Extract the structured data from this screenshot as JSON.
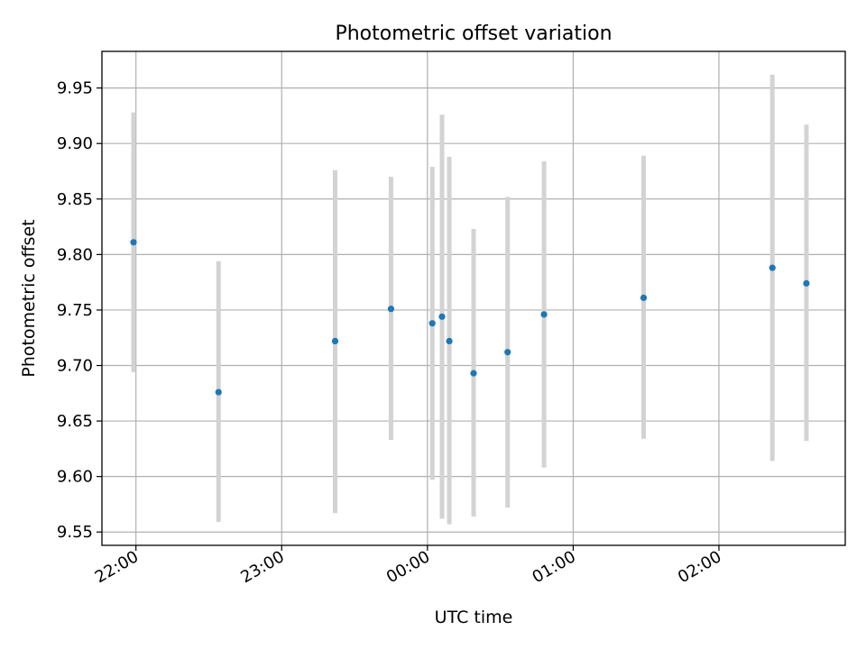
{
  "chart_data": {
    "type": "scatter",
    "title": "Photometric offset variation",
    "xlabel": "UTC time",
    "ylabel": "Photometric offset",
    "x_axis": {
      "kind": "time",
      "range": [
        "21:46",
        "02:52"
      ],
      "ticks": [
        "22:00",
        "23:00",
        "00:00",
        "01:00",
        "02:00"
      ],
      "tick_rotation_deg": 30
    },
    "ylim": [
      9.538,
      9.983
    ],
    "yticks": [
      "9.55",
      "9.60",
      "9.65",
      "9.70",
      "9.75",
      "9.80",
      "9.85",
      "9.90",
      "9.95"
    ],
    "grid": true,
    "colors": {
      "marker": "#1f77b4",
      "errorbar": "#d3d3d3",
      "grid": "#b0b0b0"
    },
    "series": [
      {
        "points": [
          {
            "x": "21:59",
            "y": 9.811,
            "err_low": 9.694,
            "err_high": 9.928
          },
          {
            "x": "22:34",
            "y": 9.676,
            "err_low": 9.559,
            "err_high": 9.794
          },
          {
            "x": "23:22",
            "y": 9.722,
            "err_low": 9.567,
            "err_high": 9.876
          },
          {
            "x": "23:45",
            "y": 9.751,
            "err_low": 9.633,
            "err_high": 9.87
          },
          {
            "x": "00:02",
            "y": 9.738,
            "err_low": 9.597,
            "err_high": 9.879
          },
          {
            "x": "00:06",
            "y": 9.744,
            "err_low": 9.562,
            "err_high": 9.926
          },
          {
            "x": "00:09",
            "y": 9.722,
            "err_low": 9.557,
            "err_high": 9.888
          },
          {
            "x": "00:19",
            "y": 9.693,
            "err_low": 9.564,
            "err_high": 9.823
          },
          {
            "x": "00:33",
            "y": 9.712,
            "err_low": 9.572,
            "err_high": 9.852
          },
          {
            "x": "00:48",
            "y": 9.746,
            "err_low": 9.608,
            "err_high": 9.884
          },
          {
            "x": "01:29",
            "y": 9.761,
            "err_low": 9.634,
            "err_high": 9.889
          },
          {
            "x": "02:22",
            "y": 9.788,
            "err_low": 9.614,
            "err_high": 9.962
          },
          {
            "x": "02:36",
            "y": 9.774,
            "err_low": 9.632,
            "err_high": 9.917
          }
        ]
      }
    ]
  }
}
